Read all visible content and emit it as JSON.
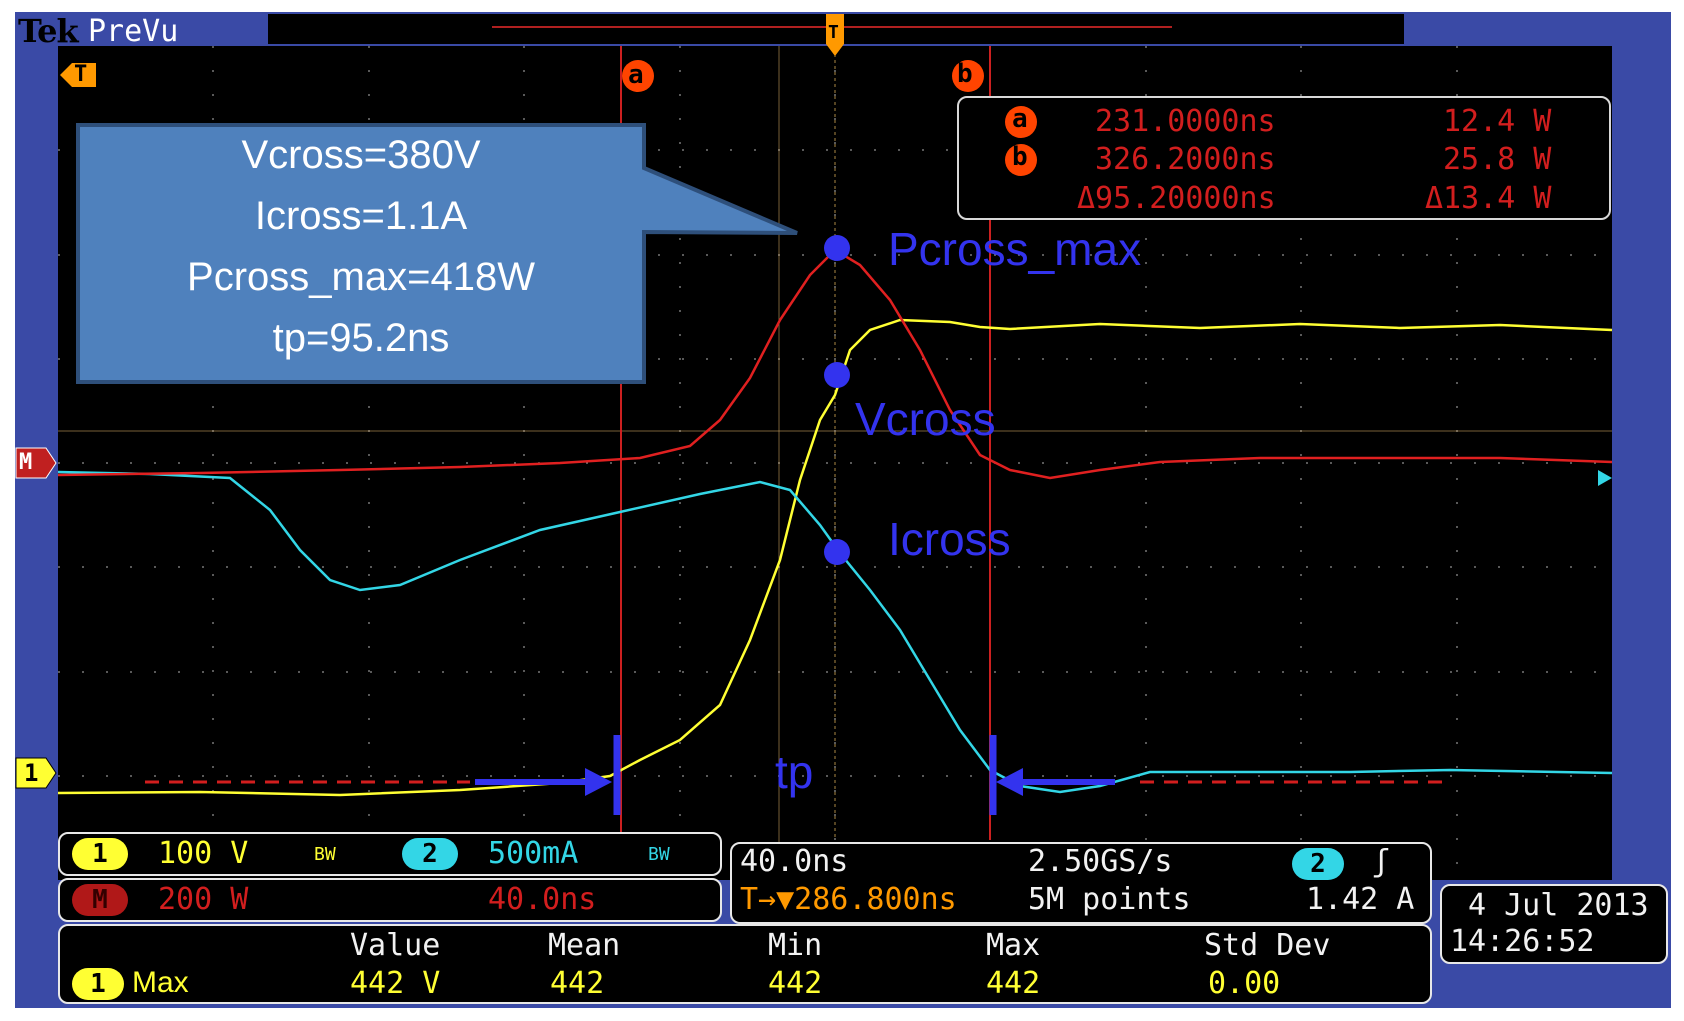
{
  "header": {
    "brand": "Tek",
    "mode": "PreVu"
  },
  "markers": {
    "trigger_pos": "T",
    "trigger_top": "T",
    "cursor_a": "a",
    "cursor_b": "b",
    "ref_math": "M",
    "ref_ch1": "1"
  },
  "cursor_readout": {
    "a": {
      "label": "a",
      "time": "231.0000ns",
      "value": "12.4 W"
    },
    "b": {
      "label": "b",
      "time": "326.2000ns",
      "value": "25.8 W"
    },
    "delta": {
      "time": "Δ95.20000ns",
      "value": "Δ13.4 W"
    }
  },
  "callout": {
    "lines": [
      "Vcross=380V",
      "Icross=1.1A",
      "Pcross_max=418W",
      "tp=95.2ns"
    ]
  },
  "annotations": {
    "pcross_max": "Pcross_max",
    "vcross": "Vcross",
    "icross": "Icross",
    "tp": "tp"
  },
  "channels": {
    "ch1": {
      "badge": "1",
      "scale": "100 V",
      "bw": "BW",
      "color": "#ffff33"
    },
    "ch2": {
      "badge": "2",
      "scale": "500mA",
      "bw": "BW",
      "color": "#33d6e6"
    },
    "math": {
      "badge": "M",
      "scale": "200 W",
      "time": "40.0ns",
      "color": "#d21e1e"
    }
  },
  "timebase": {
    "horizontal": "40.0ns",
    "sample_rate": "2.50GS/s",
    "trigger_offset": "T→▼286.800ns",
    "record": "5M points",
    "trigger_source": "2",
    "trigger_slope": "ʃ",
    "trigger_level": "1.42 A"
  },
  "measurements": {
    "headers": [
      "Value",
      "Mean",
      "Min",
      "Max",
      "Std Dev"
    ],
    "row": {
      "badge": "1",
      "name": "Max",
      "values": [
        "442 V",
        "442",
        "442",
        "442",
        "0.00"
      ]
    }
  },
  "datetime": {
    "date": "4 Jul  2013",
    "time": "14:26:52"
  }
}
